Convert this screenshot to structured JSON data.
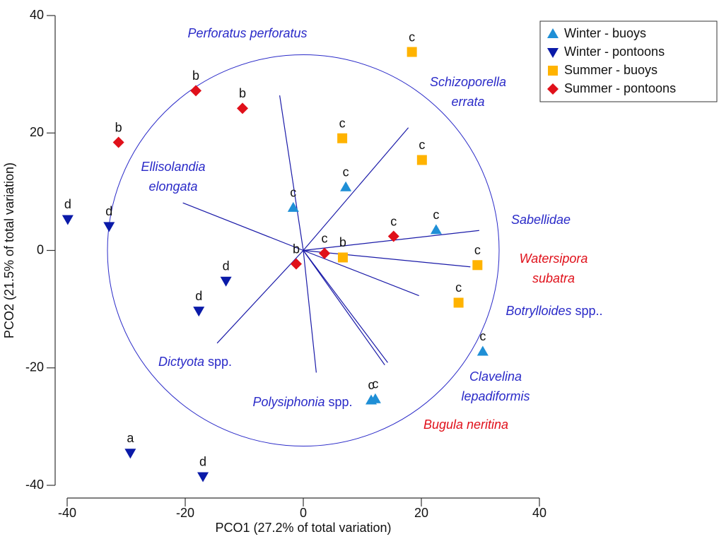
{
  "chart_data": {
    "type": "scatter",
    "x_label": "PCO1 (27.2% of total variation)",
    "y_label": "PCO2 (21.5% of total variation)",
    "xlim": [
      -40,
      40
    ],
    "ylim": [
      -40,
      40
    ],
    "xticks": [
      -40,
      -20,
      0,
      20,
      40
    ],
    "yticks": [
      -40,
      -20,
      0,
      20,
      40
    ],
    "legend_position": "top-right",
    "series": [
      {
        "name": "Winter - buoys",
        "color": "#1f8fd6",
        "marker": "triangle-up",
        "x": [
          -1.7,
          7.2,
          22.5,
          30.4,
          11.5,
          12.2
        ],
        "values": [
          7.3,
          10.8,
          3.5,
          -17.2,
          -25.5,
          -25.3
        ],
        "point_labels": [
          "c",
          "c",
          "c",
          "c",
          "c",
          "c"
        ]
      },
      {
        "name": "Winter - pontoons",
        "color": "#0a1aa8",
        "marker": "triangle-down",
        "x": [
          -39.9,
          -32.9,
          -13.1,
          -17.7,
          -29.3,
          -17.0
        ],
        "values": [
          5.3,
          4.1,
          -5.2,
          -10.3,
          -34.5,
          -38.5
        ],
        "point_labels": [
          "d",
          "d",
          "d",
          "d",
          "a",
          "d"
        ]
      },
      {
        "name": "Summer - buoys",
        "color": "#ffb300",
        "marker": "square",
        "x": [
          18.4,
          6.6,
          20.1,
          6.7,
          29.5,
          26.3
        ],
        "values": [
          33.8,
          19.1,
          15.4,
          -1.2,
          -2.5,
          -8.9
        ],
        "point_labels": [
          "c",
          "c",
          "c",
          "b",
          "c",
          "c"
        ]
      },
      {
        "name": "Summer - pontoons",
        "color": "#e0101a",
        "marker": "diamond",
        "x": [
          -18.2,
          -10.3,
          -31.3,
          -1.2,
          3.6,
          15.3
        ],
        "values": [
          27.2,
          24.2,
          18.4,
          -2.3,
          -0.5,
          2.4
        ],
        "point_labels": [
          "b",
          "b",
          "b",
          "b",
          "c",
          "c"
        ]
      }
    ],
    "vectors": [
      {
        "name": [
          "Perforatus perforatus"
        ],
        "color": "#2a2ac8",
        "x": -4.0,
        "y": 26.4
      },
      {
        "name": [
          "Schizoporella",
          "errata"
        ],
        "color": "#2a2ac8",
        "x": 17.8,
        "y": 20.9
      },
      {
        "name": [
          "Ellisolandia",
          "elongata"
        ],
        "color": "#2a2ac8",
        "x": -20.4,
        "y": 8.1
      },
      {
        "name": [
          "Sabellidae"
        ],
        "color": "#2a2ac8",
        "x": 29.8,
        "y": 3.4
      },
      {
        "name": [
          "Watersipora",
          "subatra"
        ],
        "color": "#e0101a",
        "x": 28.3,
        "y": -2.8
      },
      {
        "name": [
          "Botrylloides"
        ],
        "suffix": "spp..",
        "color": "#2a2ac8",
        "x": 19.6,
        "y": -7.7
      },
      {
        "name": [
          "Clavelina",
          "lepadiformis"
        ],
        "color": "#2a2ac8",
        "x": 14.3,
        "y": -19.1
      },
      {
        "name": [
          "Bugula neritina"
        ],
        "color": "#e0101a",
        "x": 13.8,
        "y": -19.5
      },
      {
        "name": [
          "Polysiphonia"
        ],
        "suffix": "spp.",
        "color": "#2a2ac8",
        "x": 2.2,
        "y": -20.8
      },
      {
        "name": [
          "Dictyota"
        ],
        "suffix": "spp.",
        "color": "#2a2ac8",
        "x": -14.6,
        "y": -15.8
      }
    ]
  }
}
